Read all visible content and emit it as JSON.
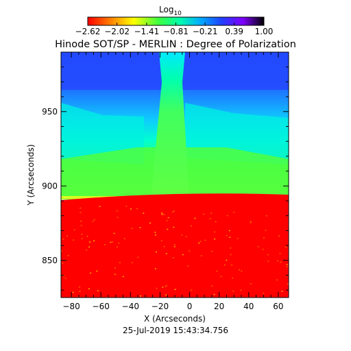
{
  "chart_data": {
    "type": "heatmap",
    "title": "Hinode SOT/SP - MERLIN : Degree of Polarization",
    "subtitle": "25-Jul-2019 15:43:34.756",
    "xlabel": "X (Arcseconds)",
    "ylabel": "Y (Arcseconds)",
    "xlim": [
      -87,
      67
    ],
    "ylim": [
      825,
      990
    ],
    "x_ticks": [
      -80,
      -60,
      -40,
      -20,
      0,
      20,
      40,
      60
    ],
    "x_tick_labels": [
      "−80",
      "−60",
      "−40",
      "−20",
      "0",
      "20",
      "40",
      "60"
    ],
    "y_ticks": [
      850,
      900,
      950
    ],
    "y_tick_labels": [
      "850",
      "900",
      "950"
    ],
    "limb_y": 891,
    "colorbar": {
      "label_base": "Log",
      "label_sub": "10",
      "range": [
        -2.62,
        1.0
      ],
      "tick_values": [
        -2.62,
        -2.02,
        -1.41,
        -0.81,
        -0.21,
        0.39,
        1.0
      ],
      "tick_labels": [
        "−2.62",
        "−2.02",
        "−1.41",
        "−0.81",
        "−0.21",
        "0.39",
        "1.00"
      ],
      "colors": [
        "#ff0000",
        "#ff8000",
        "#ffff00",
        "#40ff40",
        "#00ffaa",
        "#00aaff",
        "#2040ff",
        "#8000ff",
        "#000000"
      ]
    }
  }
}
